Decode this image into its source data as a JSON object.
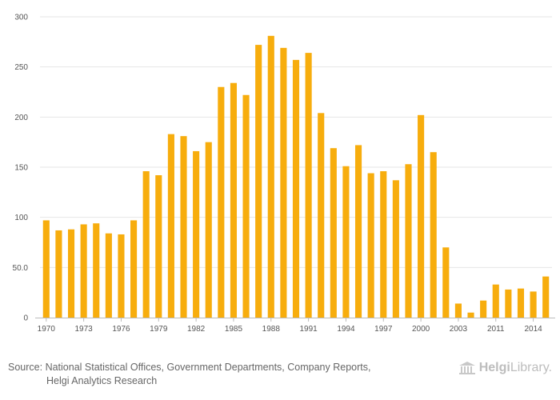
{
  "chart_data": {
    "type": "bar",
    "title": "",
    "xlabel": "",
    "ylabel": "",
    "ylim": [
      0,
      300
    ],
    "y_ticks": [
      "0",
      "50.0",
      "100",
      "150",
      "200",
      "250",
      "300"
    ],
    "x_tick_labels": [
      "1970",
      "1973",
      "1976",
      "1979",
      "1982",
      "1985",
      "1988",
      "1991",
      "1994",
      "1997",
      "2000",
      "2003",
      "2011",
      "2014"
    ],
    "bar_color": "#f7ad0d",
    "categories": [
      "1970",
      "1971",
      "1972",
      "1973",
      "1974",
      "1975",
      "1976",
      "1977",
      "1978",
      "1979",
      "1980",
      "1981",
      "1982",
      "1983",
      "1984",
      "1985",
      "1986",
      "1987",
      "1988",
      "1989",
      "1990",
      "1991",
      "1992",
      "1993",
      "1994",
      "1995",
      "1996",
      "1997",
      "1998",
      "1999",
      "2000",
      "2001",
      "2002",
      "2003",
      "2004",
      "2005",
      "2011",
      "2012",
      "2013",
      "2014",
      "2015"
    ],
    "values": [
      97,
      87,
      88,
      93,
      94,
      84,
      83,
      97,
      146,
      142,
      183,
      181,
      166,
      175,
      230,
      234,
      222,
      272,
      281,
      269,
      257,
      264,
      204,
      169,
      151,
      172,
      144,
      146,
      137,
      153,
      202,
      165,
      70,
      14,
      5,
      17,
      33,
      28,
      29,
      26,
      41
    ]
  },
  "source": {
    "label": "Source:",
    "line1": "National Statistical Offices, Government Departments, Company Reports,",
    "line2": "Helgi Analytics Research"
  },
  "brand": {
    "part1": "Helgi",
    "part2": "Library."
  }
}
